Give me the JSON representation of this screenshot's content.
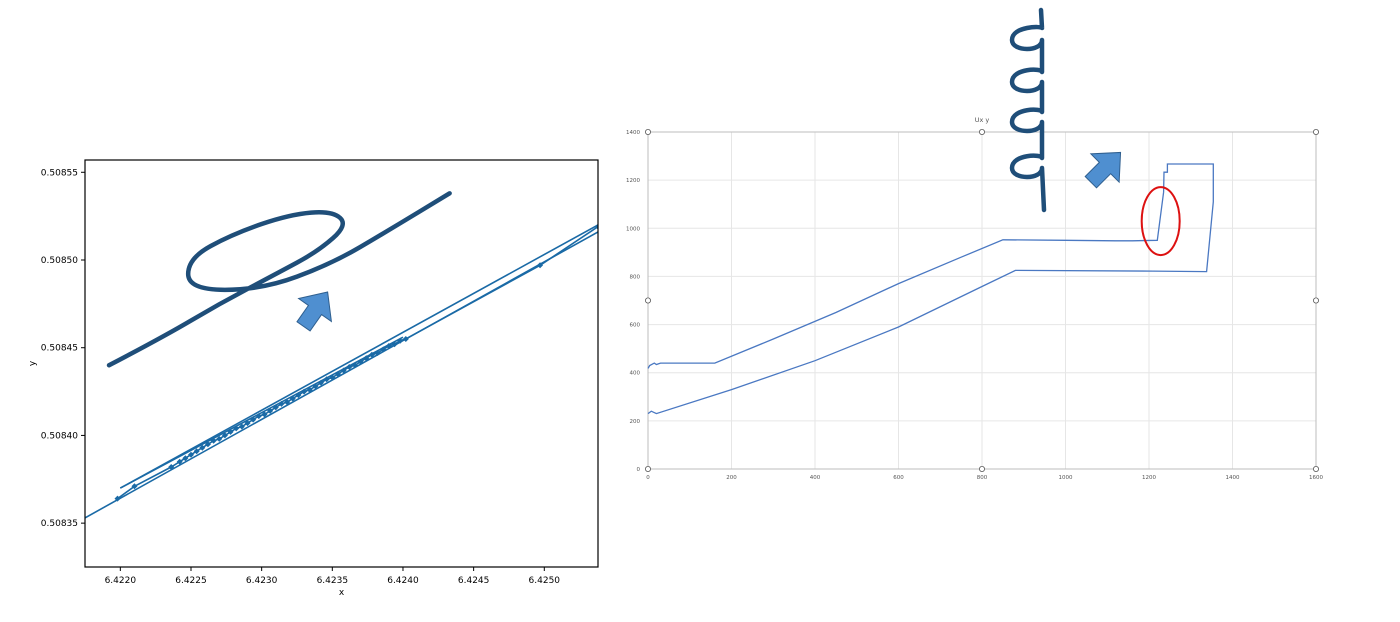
{
  "chart_data": [
    {
      "type": "line",
      "xlabel": "x",
      "ylabel": "y",
      "xlim": [
        6.42175,
        6.42538
      ],
      "ylim": [
        0.508325,
        0.508557
      ],
      "x_ticks": [
        "6.4220",
        "6.4225",
        "6.4230",
        "6.4235",
        "6.4240",
        "6.4245",
        "6.4250"
      ],
      "x_tick_values": [
        6.422,
        6.4225,
        6.423,
        6.4235,
        6.424,
        6.4245,
        6.425
      ],
      "y_ticks": [
        "0.50835",
        "0.50840",
        "0.50845",
        "0.50850",
        "0.50855"
      ],
      "y_tick_values": [
        0.50835,
        0.5084,
        0.50845,
        0.5085,
        0.50855
      ],
      "grid": false,
      "series": [
        {
          "values": [
            [
              6.42175,
              0.508353
            ],
            [
              6.42538,
              0.508516
            ]
          ]
        },
        {
          "values": [
            [
              6.422,
              0.50837
            ],
            [
              6.42538,
              0.50852
            ]
          ]
        },
        {
          "values": [
            [
              6.422,
              0.50837
            ],
            [
              6.424,
              0.508456
            ]
          ]
        },
        {
          "markers": true,
          "values": [
            [
              6.42198,
              0.508364
            ],
            [
              6.4221,
              0.508371
            ],
            [
              6.42236,
              0.508382
            ],
            [
              6.42242,
              0.508385
            ],
            [
              6.42246,
              0.508387
            ],
            [
              6.4225,
              0.508389
            ],
            [
              6.42254,
              0.508391
            ],
            [
              6.42258,
              0.508393
            ],
            [
              6.42262,
              0.508395
            ],
            [
              6.42266,
              0.508397
            ],
            [
              6.4227,
              0.508398
            ],
            [
              6.42274,
              0.5084
            ],
            [
              6.42278,
              0.508402
            ],
            [
              6.42282,
              0.508404
            ],
            [
              6.42286,
              0.508405
            ],
            [
              6.4229,
              0.508407
            ],
            [
              6.42294,
              0.508409
            ],
            [
              6.42298,
              0.508411
            ],
            [
              6.42302,
              0.508412
            ],
            [
              6.42306,
              0.508414
            ],
            [
              6.4231,
              0.508416
            ],
            [
              6.42314,
              0.508418
            ],
            [
              6.42318,
              0.508419
            ],
            [
              6.42322,
              0.508421
            ],
            [
              6.42326,
              0.508423
            ],
            [
              6.4233,
              0.508425
            ],
            [
              6.42334,
              0.508426
            ],
            [
              6.42338,
              0.508428
            ],
            [
              6.42342,
              0.50843
            ],
            [
              6.42346,
              0.508432
            ],
            [
              6.4235,
              0.508433
            ],
            [
              6.42354,
              0.508435
            ],
            [
              6.42358,
              0.508437
            ],
            [
              6.42362,
              0.508439
            ],
            [
              6.42366,
              0.50844
            ],
            [
              6.4237,
              0.508442
            ],
            [
              6.42374,
              0.508444
            ],
            [
              6.42378,
              0.508446
            ],
            [
              6.42382,
              0.508447
            ],
            [
              6.42386,
              0.508449
            ],
            [
              6.4239,
              0.508451
            ],
            [
              6.42394,
              0.508452
            ],
            [
              6.42398,
              0.508454
            ],
            [
              6.42402,
              0.508455
            ],
            [
              6.42497,
              0.508497
            ],
            [
              6.42538,
              0.508519
            ]
          ]
        }
      ],
      "annotations": {
        "sketch": [
          [
            6.42192,
            0.50844
          ],
          [
            6.4223,
            0.508456
          ],
          [
            6.4227,
            0.508475
          ],
          [
            6.4231,
            0.508492
          ],
          [
            6.4234,
            0.508505
          ],
          [
            6.42361,
            0.50852
          ],
          [
            6.4235,
            0.508528
          ],
          [
            6.4232,
            0.508526
          ],
          [
            6.4228,
            0.508515
          ],
          [
            6.42248,
            0.508501
          ],
          [
            6.42248,
            0.508483
          ],
          [
            6.423,
            0.508483
          ],
          [
            6.4235,
            0.508498
          ],
          [
            6.4239,
            0.508517
          ],
          [
            6.42433,
            0.508538
          ]
        ],
        "arrow": "up-right",
        "arrow_color": "#4f8fd0",
        "sketch_color": "#1f4e79"
      }
    },
    {
      "type": "line",
      "title": "Ux y",
      "xlim": [
        0,
        1600
      ],
      "ylim": [
        0,
        1400
      ],
      "x_ticks": [
        "0",
        "200",
        "400",
        "600",
        "800",
        "1000",
        "1200",
        "1400",
        "1600"
      ],
      "x_tick_values": [
        0,
        200,
        400,
        600,
        800,
        1000,
        1200,
        1400,
        1600
      ],
      "y_ticks": [
        "0",
        "200",
        "400",
        "600",
        "800",
        "1000",
        "1200",
        "1400"
      ],
      "y_tick_values": [
        0,
        200,
        400,
        600,
        800,
        1000,
        1200,
        1400
      ],
      "grid": true,
      "line_color": "#4a78c2",
      "series": [
        {
          "values": [
            [
              0,
              418
            ],
            [
              4,
              430
            ],
            [
              15,
              440
            ],
            [
              20,
              434
            ],
            [
              30,
              440
            ],
            [
              160,
              440
            ],
            [
              300,
              540
            ],
            [
              450,
              650
            ],
            [
              600,
              770
            ],
            [
              750,
              880
            ],
            [
              850,
              952
            ],
            [
              1000,
              950
            ],
            [
              1120,
              948
            ],
            [
              1160,
              948
            ],
            [
              1220,
              950
            ],
            [
              1235,
              1150
            ],
            [
              1236,
              1233
            ],
            [
              1244,
              1233
            ],
            [
              1244,
              1267
            ],
            [
              1354,
              1267
            ],
            [
              1354,
              1110
            ],
            [
              1338,
              820
            ],
            [
              1210,
              822
            ],
            [
              880,
              825
            ],
            [
              800,
              758
            ],
            [
              600,
              590
            ],
            [
              400,
              450
            ],
            [
              200,
              330
            ],
            [
              20,
              230
            ],
            [
              8,
              240
            ],
            [
              0,
              230
            ]
          ]
        }
      ],
      "annotations": {
        "highlight": {
          "x": 1228,
          "y": 1030,
          "color": "#dd1111"
        },
        "arrow": "up-right",
        "arrow_color": "#4f8fd0",
        "sketch": "spring",
        "sketch_color": "#1f4e79"
      }
    }
  ]
}
